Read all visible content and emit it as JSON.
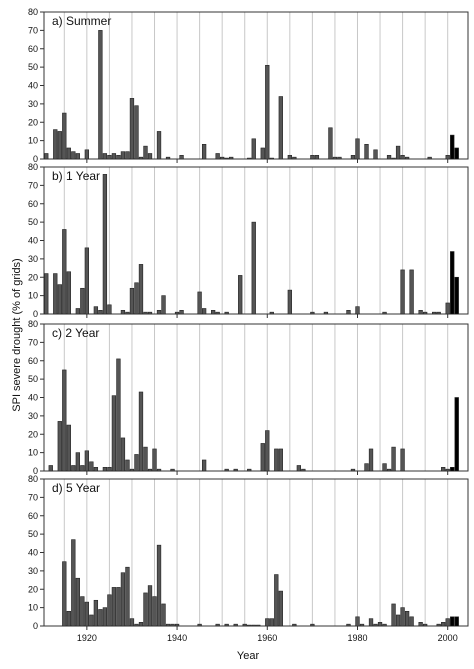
{
  "ylabel": "SPI severe drought (% of grids)",
  "xlabel": "Year",
  "chart_data": [
    {
      "type": "bar",
      "title": "a) Summer",
      "ylim": [
        0,
        80
      ],
      "yticks": [
        0,
        10,
        20,
        30,
        40,
        50,
        60,
        70,
        80
      ],
      "xlim": [
        1910.5,
        2004.5
      ],
      "xticks": [
        1920,
        1940,
        1960,
        1980,
        2000
      ],
      "grid": "vertical lines every 5 years",
      "highlight_color": "#000000",
      "bar_color": "#555555",
      "x": [
        1911,
        1913,
        1914,
        1915,
        1916,
        1917,
        1918,
        1920,
        1923,
        1924,
        1925,
        1926,
        1927,
        1928,
        1929,
        1930,
        1931,
        1932,
        1933,
        1934,
        1936,
        1938,
        1941,
        1946,
        1949,
        1950,
        1951,
        1952,
        1956,
        1957,
        1959,
        1960,
        1961,
        1963,
        1965,
        1966,
        1970,
        1971,
        1974,
        1975,
        1976,
        1979,
        1980,
        1982,
        1984,
        1987,
        1988,
        1989,
        1990,
        1991,
        1996,
        2000,
        2001,
        2002
      ],
      "values": [
        3,
        16,
        15,
        25,
        6,
        4,
        3,
        5,
        70,
        3,
        2,
        3,
        2,
        4,
        4,
        33,
        29,
        1,
        7,
        3,
        15,
        1,
        2,
        8,
        3,
        1,
        0.5,
        1,
        0.5,
        11,
        6,
        51,
        0.5,
        34,
        2,
        1,
        2,
        2,
        17,
        1,
        1,
        2,
        11,
        8,
        5,
        2,
        0.5,
        7,
        2,
        1,
        1,
        2,
        13,
        6
      ],
      "highlight_x": [
        2001,
        2002
      ]
    },
    {
      "type": "bar",
      "title": "b) 1 Year",
      "ylim": [
        0,
        80
      ],
      "yticks": [
        0,
        10,
        20,
        30,
        40,
        50,
        60,
        70,
        80
      ],
      "xlim": [
        1910.5,
        2004.5
      ],
      "xticks": [
        1920,
        1940,
        1960,
        1980,
        2000
      ],
      "grid": "vertical lines every 5 years",
      "highlight_color": "#000000",
      "bar_color": "#555555",
      "x": [
        1911,
        1913,
        1914,
        1915,
        1916,
        1918,
        1919,
        1920,
        1922,
        1923,
        1924,
        1925,
        1928,
        1929,
        1930,
        1931,
        1932,
        1933,
        1934,
        1936,
        1937,
        1940,
        1941,
        1945,
        1946,
        1948,
        1949,
        1951,
        1954,
        1957,
        1961,
        1965,
        1970,
        1973,
        1978,
        1980,
        1986,
        1990,
        1992,
        1994,
        1995,
        1997,
        1998,
        2000,
        2001,
        2002
      ],
      "values": [
        22,
        22,
        16,
        46,
        23,
        3,
        14,
        36,
        4,
        2,
        76,
        5,
        2,
        1,
        14,
        17,
        27,
        1,
        1,
        2,
        10,
        1,
        2,
        12,
        3,
        2,
        1,
        1,
        21,
        50,
        1,
        13,
        1,
        1,
        2,
        4,
        1,
        24,
        24,
        2,
        1,
        1,
        1,
        6,
        34,
        20
      ],
      "highlight_x": [
        2001,
        2002
      ]
    },
    {
      "type": "bar",
      "title": "c) 2 Year",
      "ylim": [
        0,
        80
      ],
      "yticks": [
        0,
        10,
        20,
        30,
        40,
        50,
        60,
        70,
        80
      ],
      "xlim": [
        1910.5,
        2004.5
      ],
      "xticks": [
        1920,
        1940,
        1960,
        1980,
        2000
      ],
      "grid": "vertical lines every 5 years",
      "highlight_color": "#000000",
      "bar_color": "#555555",
      "x": [
        1912,
        1914,
        1915,
        1916,
        1917,
        1918,
        1919,
        1920,
        1921,
        1922,
        1924,
        1925,
        1926,
        1927,
        1928,
        1929,
        1930,
        1931,
        1932,
        1933,
        1934,
        1935,
        1936,
        1939,
        1946,
        1951,
        1953,
        1956,
        1959,
        1960,
        1962,
        1963,
        1967,
        1968,
        1979,
        1982,
        1983,
        1986,
        1987,
        1988,
        1990,
        1999,
        2000,
        2001,
        2002
      ],
      "values": [
        3,
        27,
        55,
        25,
        3,
        10,
        3,
        11,
        5,
        2,
        2,
        2,
        41,
        61,
        18,
        6,
        1,
        9,
        43,
        13,
        1,
        12,
        1,
        1,
        6,
        1,
        1,
        1,
        15,
        22,
        12,
        12,
        3,
        1,
        1,
        4,
        12,
        4,
        1,
        13,
        12,
        2,
        1,
        2,
        40
      ],
      "highlight_x": [
        2001,
        2002
      ]
    },
    {
      "type": "bar",
      "title": "d) 5 Year",
      "ylim": [
        0,
        80
      ],
      "yticks": [
        0,
        10,
        20,
        30,
        40,
        50,
        60,
        70,
        80
      ],
      "xlim": [
        1910.5,
        2004.5
      ],
      "xticks": [
        1920,
        1940,
        1960,
        1980,
        2000
      ],
      "grid": "vertical lines every 5 years",
      "highlight_color": "#000000",
      "bar_color": "#555555",
      "x": [
        1915,
        1916,
        1917,
        1918,
        1919,
        1920,
        1921,
        1922,
        1923,
        1924,
        1925,
        1926,
        1927,
        1928,
        1929,
        1930,
        1931,
        1932,
        1933,
        1934,
        1935,
        1936,
        1937,
        1938,
        1939,
        1940,
        1945,
        1949,
        1951,
        1953,
        1955,
        1956,
        1957,
        1958,
        1960,
        1961,
        1962,
        1963,
        1966,
        1970,
        1978,
        1980,
        1981,
        1983,
        1984,
        1985,
        1986,
        1988,
        1989,
        1990,
        1991,
        1992,
        1994,
        1995,
        1998,
        1999,
        2000,
        2001,
        2002
      ],
      "values": [
        35,
        8,
        47,
        26,
        16,
        13,
        6,
        14,
        9,
        10,
        17,
        21,
        21,
        29,
        32,
        4,
        1,
        2,
        18,
        22,
        16,
        44,
        12,
        1,
        1,
        1,
        1,
        1,
        1,
        1,
        1,
        0.5,
        0.5,
        0.5,
        4,
        4,
        28,
        19,
        1,
        1,
        1,
        5,
        1,
        4,
        1,
        2,
        1,
        12,
        6,
        10,
        8,
        5,
        2,
        1,
        1,
        2,
        4,
        5,
        5
      ],
      "highlight_x": [
        2001,
        2002
      ]
    }
  ]
}
